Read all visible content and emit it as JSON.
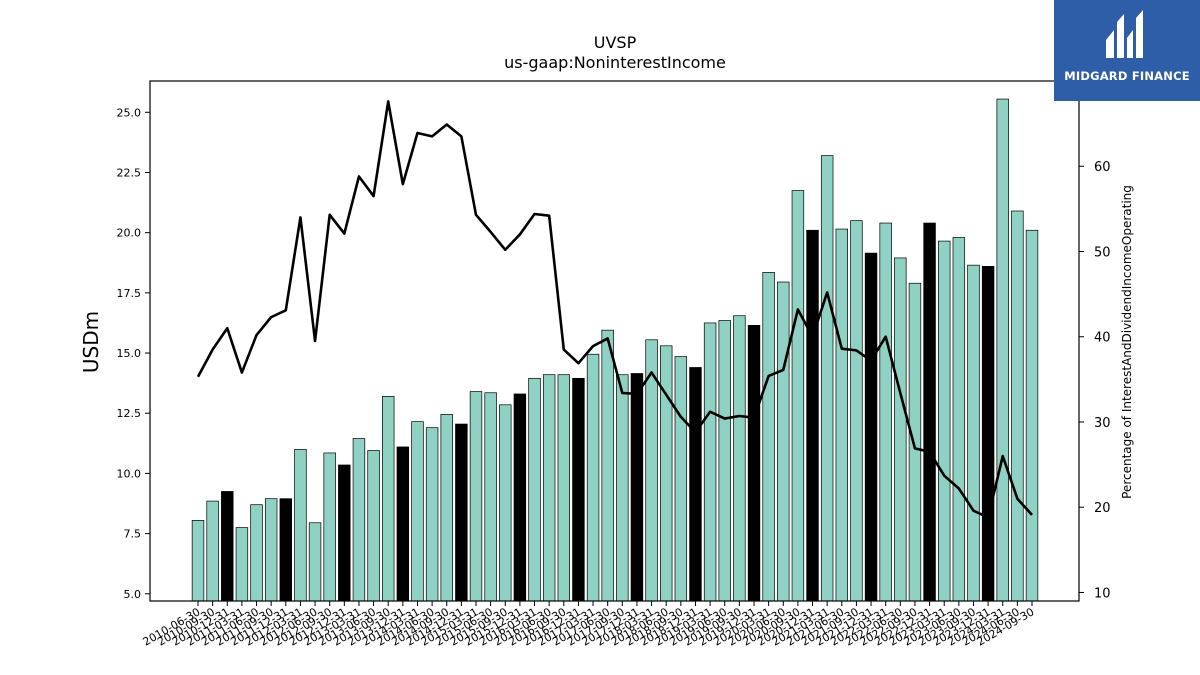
{
  "brand": {
    "name": "MIDGARD FINANCE",
    "color": "#2f5ea8",
    "icon": "midgard-logo-icon"
  },
  "chart_data": {
    "type": "bar",
    "title": "UVSP",
    "subtitle": "us-gaap:NoninterestIncome",
    "ylabel": "USDm",
    "y2label": "Percentage of InterestAndDividendIncomeOperating",
    "ylim": [
      4.7,
      26.3
    ],
    "y2lim": [
      9.0,
      70.0
    ],
    "yticks": [
      "5.0",
      "7.5",
      "10.0",
      "12.5",
      "15.0",
      "17.5",
      "20.0",
      "22.5",
      "25.0"
    ],
    "y2ticks": [
      "10",
      "20",
      "30",
      "40",
      "50",
      "60"
    ],
    "bar_color": "#8fd1c2",
    "highlight_color": "#000000",
    "line_color": "#000000",
    "grid": false,
    "categories": [
      "2010-06-30",
      "2010-09-30",
      "2010-12-31",
      "2011-03-31",
      "2011-06-30",
      "2011-09-30",
      "2011-12-31",
      "2012-03-31",
      "2012-06-30",
      "2012-09-30",
      "2012-12-31",
      "2013-03-31",
      "2013-06-30",
      "2013-09-30",
      "2013-12-31",
      "2014-03-31",
      "2014-06-30",
      "2014-09-30",
      "2014-12-31",
      "2015-03-31",
      "2015-06-30",
      "2015-09-30",
      "2015-12-31",
      "2016-03-31",
      "2016-06-30",
      "2016-09-30",
      "2016-12-31",
      "2017-03-31",
      "2017-06-30",
      "2017-09-30",
      "2017-12-31",
      "2018-03-31",
      "2018-06-30",
      "2018-09-30",
      "2018-12-31",
      "2019-03-31",
      "2019-06-30",
      "2019-09-30",
      "2019-12-31",
      "2020-03-31",
      "2020-06-30",
      "2020-09-30",
      "2020-12-31",
      "2021-03-31",
      "2021-06-30",
      "2021-09-30",
      "2021-12-31",
      "2022-03-31",
      "2022-06-30",
      "2022-09-30",
      "2022-12-31",
      "2023-03-31",
      "2023-06-30",
      "2023-09-30",
      "2023-12-31",
      "2024-03-31",
      "2024-06-30",
      "2024-09-30"
    ],
    "series": [
      {
        "kind": "bar",
        "values": [
          8.05,
          8.85,
          9.25,
          7.75,
          8.7,
          8.95,
          8.95,
          11.0,
          7.95,
          10.85,
          10.35,
          11.45,
          10.95,
          13.2,
          11.1,
          12.15,
          11.9,
          12.45,
          12.05,
          13.4,
          13.35,
          12.85,
          13.3,
          13.95,
          14.1,
          14.1,
          13.95,
          14.95,
          15.95,
          14.1,
          14.15,
          15.55,
          15.3,
          14.85,
          14.4,
          16.25,
          16.35,
          16.55,
          16.15,
          18.35,
          17.95,
          21.75,
          20.1,
          23.2,
          20.15,
          20.5,
          19.15,
          20.4,
          18.95,
          17.9,
          20.4,
          19.65,
          19.8,
          18.65,
          18.6,
          25.55,
          20.9,
          20.1
        ],
        "highlight": [
          false,
          false,
          true,
          false,
          false,
          false,
          true,
          false,
          false,
          false,
          true,
          false,
          false,
          false,
          true,
          false,
          false,
          false,
          true,
          false,
          false,
          false,
          true,
          false,
          false,
          false,
          true,
          false,
          false,
          false,
          true,
          false,
          false,
          false,
          true,
          false,
          false,
          false,
          true,
          false,
          false,
          false,
          true,
          false,
          false,
          false,
          true,
          false,
          false,
          false,
          true,
          false,
          false,
          false,
          true,
          false,
          false,
          false
        ]
      },
      {
        "kind": "line",
        "axis": "right",
        "values": [
          35.3,
          38.5,
          41.0,
          35.8,
          40.2,
          42.3,
          43.1,
          54.0,
          39.5,
          54.3,
          52.1,
          58.8,
          56.5,
          67.6,
          57.9,
          63.9,
          63.5,
          64.9,
          63.5,
          54.3,
          52.3,
          50.2,
          52.0,
          54.4,
          54.2,
          38.5,
          36.9,
          38.9,
          39.8,
          33.4,
          33.3,
          35.8,
          33.2,
          30.6,
          28.8,
          31.2,
          30.4,
          30.7,
          30.5,
          35.4,
          36.1,
          43.2,
          40.0,
          45.2,
          38.6,
          38.4,
          37.2,
          40.0,
          33.4,
          26.9,
          26.5,
          23.7,
          22.2,
          19.6,
          18.8,
          26.0,
          21.0,
          19.1
        ]
      }
    ]
  }
}
